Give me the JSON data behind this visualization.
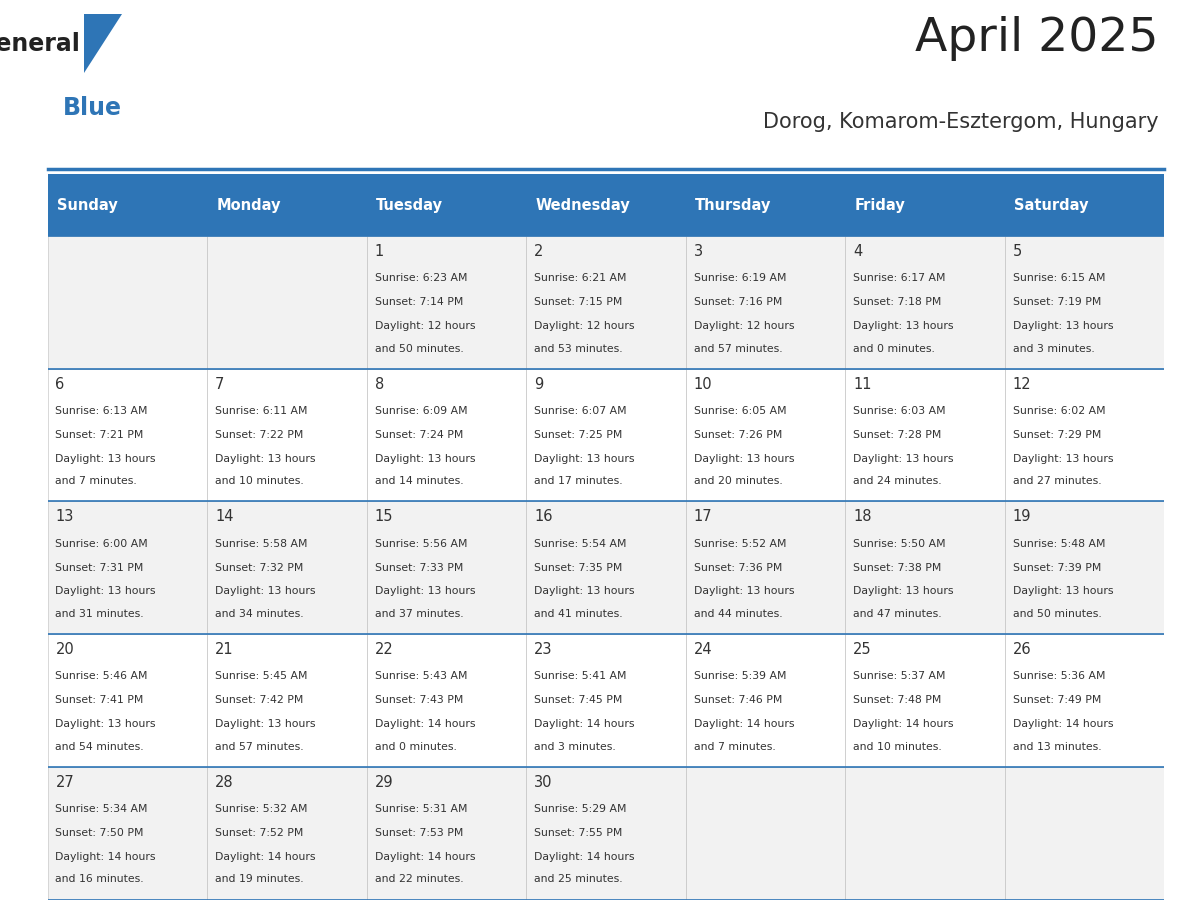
{
  "title": "April 2025",
  "subtitle": "Dorog, Komarom-Esztergom, Hungary",
  "days_of_week": [
    "Sunday",
    "Monday",
    "Tuesday",
    "Wednesday",
    "Thursday",
    "Friday",
    "Saturday"
  ],
  "header_bg": "#2E75B6",
  "header_text": "#FFFFFF",
  "row_bg_odd": "#F2F2F2",
  "row_bg_even": "#FFFFFF",
  "text_color": "#333333",
  "title_color": "#222222",
  "subtitle_color": "#333333",
  "logo_general_color": "#222222",
  "logo_blue_color": "#2E75B6",
  "line_color": "#2E75B6",
  "weeks": [
    [
      {
        "day": null,
        "sunrise": null,
        "sunset": null,
        "daylight": null
      },
      {
        "day": null,
        "sunrise": null,
        "sunset": null,
        "daylight": null
      },
      {
        "day": 1,
        "sunrise": "6:23 AM",
        "sunset": "7:14 PM",
        "daylight": "12 hours and 50 minutes."
      },
      {
        "day": 2,
        "sunrise": "6:21 AM",
        "sunset": "7:15 PM",
        "daylight": "12 hours and 53 minutes."
      },
      {
        "day": 3,
        "sunrise": "6:19 AM",
        "sunset": "7:16 PM",
        "daylight": "12 hours and 57 minutes."
      },
      {
        "day": 4,
        "sunrise": "6:17 AM",
        "sunset": "7:18 PM",
        "daylight": "13 hours and 0 minutes."
      },
      {
        "day": 5,
        "sunrise": "6:15 AM",
        "sunset": "7:19 PM",
        "daylight": "13 hours and 3 minutes."
      }
    ],
    [
      {
        "day": 6,
        "sunrise": "6:13 AM",
        "sunset": "7:21 PM",
        "daylight": "13 hours and 7 minutes."
      },
      {
        "day": 7,
        "sunrise": "6:11 AM",
        "sunset": "7:22 PM",
        "daylight": "13 hours and 10 minutes."
      },
      {
        "day": 8,
        "sunrise": "6:09 AM",
        "sunset": "7:24 PM",
        "daylight": "13 hours and 14 minutes."
      },
      {
        "day": 9,
        "sunrise": "6:07 AM",
        "sunset": "7:25 PM",
        "daylight": "13 hours and 17 minutes."
      },
      {
        "day": 10,
        "sunrise": "6:05 AM",
        "sunset": "7:26 PM",
        "daylight": "13 hours and 20 minutes."
      },
      {
        "day": 11,
        "sunrise": "6:03 AM",
        "sunset": "7:28 PM",
        "daylight": "13 hours and 24 minutes."
      },
      {
        "day": 12,
        "sunrise": "6:02 AM",
        "sunset": "7:29 PM",
        "daylight": "13 hours and 27 minutes."
      }
    ],
    [
      {
        "day": 13,
        "sunrise": "6:00 AM",
        "sunset": "7:31 PM",
        "daylight": "13 hours and 31 minutes."
      },
      {
        "day": 14,
        "sunrise": "5:58 AM",
        "sunset": "7:32 PM",
        "daylight": "13 hours and 34 minutes."
      },
      {
        "day": 15,
        "sunrise": "5:56 AM",
        "sunset": "7:33 PM",
        "daylight": "13 hours and 37 minutes."
      },
      {
        "day": 16,
        "sunrise": "5:54 AM",
        "sunset": "7:35 PM",
        "daylight": "13 hours and 41 minutes."
      },
      {
        "day": 17,
        "sunrise": "5:52 AM",
        "sunset": "7:36 PM",
        "daylight": "13 hours and 44 minutes."
      },
      {
        "day": 18,
        "sunrise": "5:50 AM",
        "sunset": "7:38 PM",
        "daylight": "13 hours and 47 minutes."
      },
      {
        "day": 19,
        "sunrise": "5:48 AM",
        "sunset": "7:39 PM",
        "daylight": "13 hours and 50 minutes."
      }
    ],
    [
      {
        "day": 20,
        "sunrise": "5:46 AM",
        "sunset": "7:41 PM",
        "daylight": "13 hours and 54 minutes."
      },
      {
        "day": 21,
        "sunrise": "5:45 AM",
        "sunset": "7:42 PM",
        "daylight": "13 hours and 57 minutes."
      },
      {
        "day": 22,
        "sunrise": "5:43 AM",
        "sunset": "7:43 PM",
        "daylight": "14 hours and 0 minutes."
      },
      {
        "day": 23,
        "sunrise": "5:41 AM",
        "sunset": "7:45 PM",
        "daylight": "14 hours and 3 minutes."
      },
      {
        "day": 24,
        "sunrise": "5:39 AM",
        "sunset": "7:46 PM",
        "daylight": "14 hours and 7 minutes."
      },
      {
        "day": 25,
        "sunrise": "5:37 AM",
        "sunset": "7:48 PM",
        "daylight": "14 hours and 10 minutes."
      },
      {
        "day": 26,
        "sunrise": "5:36 AM",
        "sunset": "7:49 PM",
        "daylight": "14 hours and 13 minutes."
      }
    ],
    [
      {
        "day": 27,
        "sunrise": "5:34 AM",
        "sunset": "7:50 PM",
        "daylight": "14 hours and 16 minutes."
      },
      {
        "day": 28,
        "sunrise": "5:32 AM",
        "sunset": "7:52 PM",
        "daylight": "14 hours and 19 minutes."
      },
      {
        "day": 29,
        "sunrise": "5:31 AM",
        "sunset": "7:53 PM",
        "daylight": "14 hours and 22 minutes."
      },
      {
        "day": 30,
        "sunrise": "5:29 AM",
        "sunset": "7:55 PM",
        "daylight": "14 hours and 25 minutes."
      },
      {
        "day": null,
        "sunrise": null,
        "sunset": null,
        "daylight": null
      },
      {
        "day": null,
        "sunrise": null,
        "sunset": null,
        "daylight": null
      },
      {
        "day": null,
        "sunrise": null,
        "sunset": null,
        "daylight": null
      }
    ]
  ]
}
